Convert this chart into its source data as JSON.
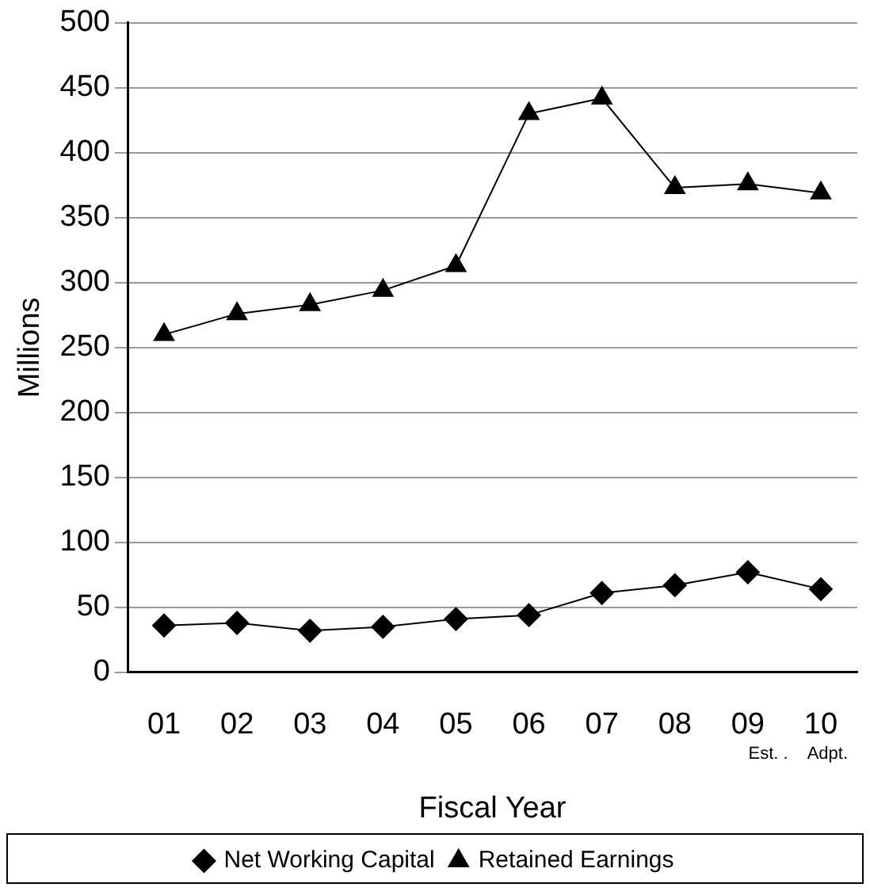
{
  "chart_data": {
    "type": "line",
    "xlabel": "Fiscal Year",
    "ylabel": "Millions",
    "categories": [
      "01",
      "02",
      "03",
      "04",
      "05",
      "06",
      "07",
      "08",
      "09",
      "10"
    ],
    "series": [
      {
        "name": "Net Working Capital",
        "color": "#000000",
        "marker": "diamond",
        "values": [
          36,
          38,
          32,
          35,
          41,
          44,
          61,
          67,
          77,
          64
        ]
      },
      {
        "name": "Retained Earnings",
        "color": "#000000",
        "marker": "triangle",
        "values": [
          260,
          276,
          283,
          294,
          313,
          430,
          442,
          373,
          376,
          369
        ]
      }
    ],
    "ylim": [
      0,
      500
    ],
    "yticks": [
      0,
      50,
      100,
      150,
      200,
      250,
      300,
      350,
      400,
      450,
      500
    ],
    "grid": "y",
    "legend": "bottom",
    "line_style": "solid",
    "annotations": [
      "Est. .",
      "Adpt."
    ]
  }
}
